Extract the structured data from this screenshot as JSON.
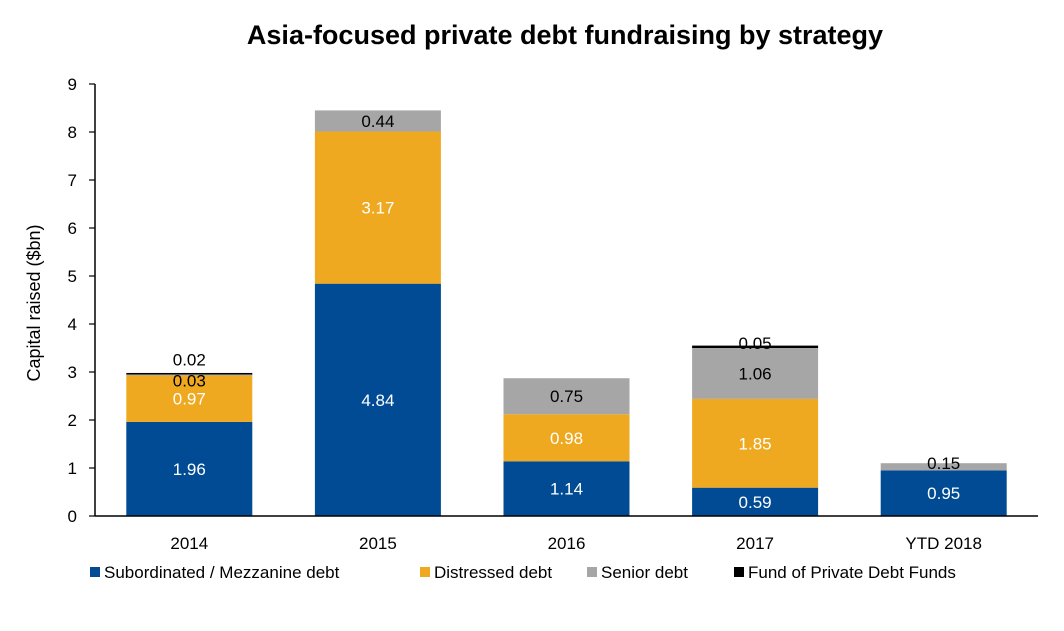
{
  "chart_data": {
    "type": "bar",
    "stacked": true,
    "title": "Asia-focused private debt fundraising by strategy",
    "xlabel": "",
    "ylabel": "Capital raised ($bn)",
    "ylim": [
      0,
      9
    ],
    "yticks": [
      0,
      1,
      2,
      3,
      4,
      5,
      6,
      7,
      8,
      9
    ],
    "grid": false,
    "legend_position": "bottom",
    "categories": [
      "2014",
      "2015",
      "2016",
      "2017",
      "YTD 2018"
    ],
    "series": [
      {
        "name": "Subordinated / Mezzanine debt",
        "color": "#004B93",
        "label_color": "#ffffff",
        "values": [
          1.96,
          4.84,
          1.14,
          0.59,
          0.95
        ],
        "labels": [
          "1.96",
          "4.84",
          "1.14",
          "0.59",
          "0.95"
        ]
      },
      {
        "name": "Distressed debt",
        "color": "#EEA921",
        "label_color": "#ffffff",
        "values": [
          0.97,
          3.17,
          0.98,
          1.85,
          0
        ],
        "labels": [
          "0.97",
          "3.17",
          "0.98",
          "1.85",
          ""
        ]
      },
      {
        "name": "Senior debt",
        "color": "#A6A6A6",
        "label_color": "#000000",
        "values": [
          0.03,
          0.44,
          0.75,
          1.06,
          0.15
        ],
        "labels": [
          "0.03",
          "0.44",
          "0.75",
          "1.06",
          "0.15"
        ]
      },
      {
        "name": "Fund of Private Debt Funds",
        "color": "#000000",
        "label_color": "#000000",
        "values": [
          0.02,
          0,
          0,
          0.05,
          0
        ],
        "labels": [
          "0.02",
          "",
          "",
          "0.05",
          ""
        ]
      }
    ]
  }
}
